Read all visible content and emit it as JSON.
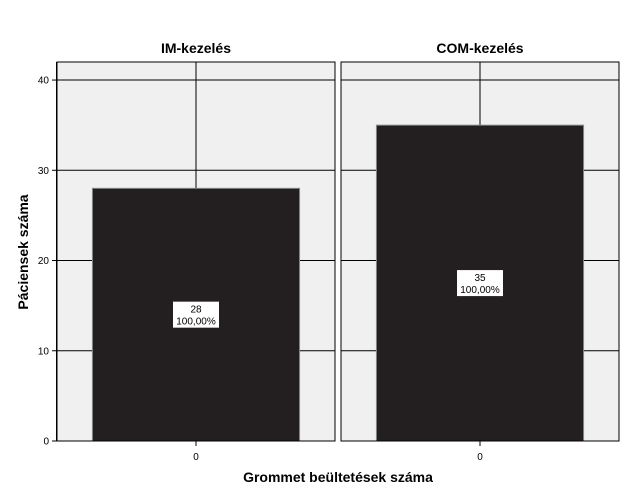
{
  "chart_data": {
    "type": "bar",
    "layout": "faceted",
    "xlabel": "Grommet beültetések száma",
    "ylabel": "Páciensek száma",
    "ylim": [
      0,
      42
    ],
    "yticks": [
      0,
      10,
      20,
      30,
      40
    ],
    "grid": true,
    "colors": {
      "bar": "#231f20",
      "panel_background": "#f0f0f0",
      "grid": "#000000"
    },
    "panels": [
      {
        "title": "IM-kezelés",
        "categories": [
          "0"
        ],
        "values": [
          28
        ],
        "labels": [
          {
            "count": "28",
            "percent": "100,00%"
          }
        ]
      },
      {
        "title": "COM-kezelés",
        "categories": [
          "0"
        ],
        "values": [
          35
        ],
        "labels": [
          {
            "count": "35",
            "percent": "100,00%"
          }
        ]
      }
    ]
  }
}
